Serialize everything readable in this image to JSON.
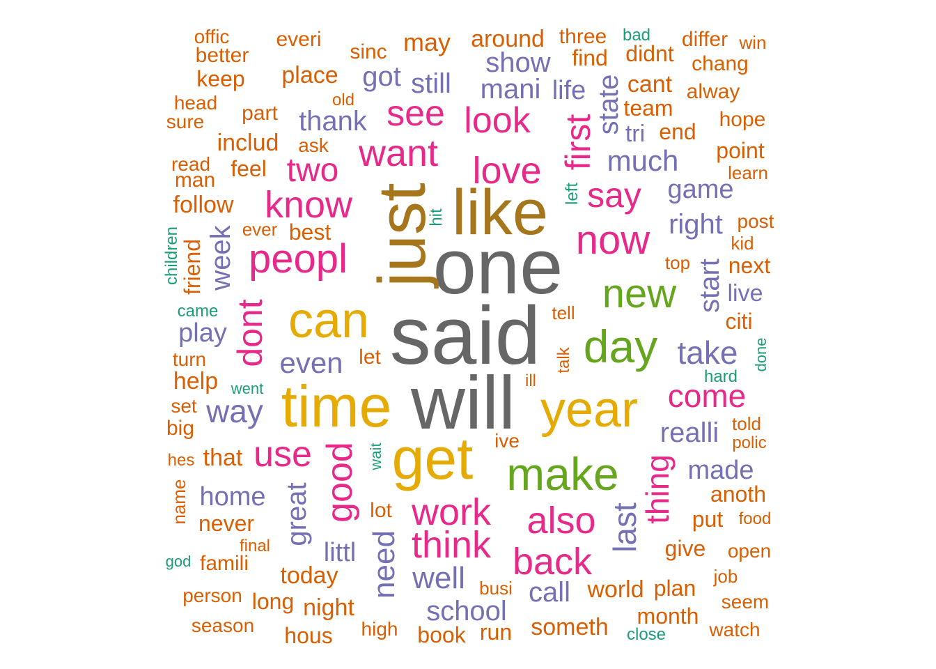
{
  "palette": {
    "gray": "#666666",
    "gold": "#a6761d",
    "yellow": "#e6ab02",
    "green": "#66a61e",
    "magenta": "#e7298a",
    "purple": "#7570b3",
    "orange": "#d95f02",
    "teal": "#1b9e77"
  },
  "words": [
    {
      "text": "said",
      "color": "gray"
    },
    {
      "text": "one",
      "color": "gray"
    },
    {
      "text": "will",
      "color": "gray"
    },
    {
      "text": "just",
      "color": "gold"
    },
    {
      "text": "like",
      "color": "gold"
    },
    {
      "text": "time",
      "color": "yellow"
    },
    {
      "text": "get",
      "color": "yellow"
    },
    {
      "text": "can",
      "color": "yellow"
    },
    {
      "text": "year",
      "color": "yellow"
    },
    {
      "text": "make",
      "color": "green"
    },
    {
      "text": "day",
      "color": "green"
    },
    {
      "text": "new",
      "color": "green"
    },
    {
      "text": "peopl",
      "color": "magenta"
    },
    {
      "text": "now",
      "color": "magenta"
    },
    {
      "text": "know",
      "color": "magenta"
    },
    {
      "text": "want",
      "color": "magenta"
    },
    {
      "text": "love",
      "color": "magenta"
    },
    {
      "text": "see",
      "color": "magenta"
    },
    {
      "text": "look",
      "color": "magenta"
    },
    {
      "text": "two",
      "color": "magenta"
    },
    {
      "text": "say",
      "color": "magenta"
    },
    {
      "text": "first",
      "color": "magenta"
    },
    {
      "text": "dont",
      "color": "magenta"
    },
    {
      "text": "good",
      "color": "magenta"
    },
    {
      "text": "work",
      "color": "magenta"
    },
    {
      "text": "think",
      "color": "magenta"
    },
    {
      "text": "also",
      "color": "magenta"
    },
    {
      "text": "back",
      "color": "magenta"
    },
    {
      "text": "come",
      "color": "magenta"
    },
    {
      "text": "thing",
      "color": "magenta"
    },
    {
      "text": "use",
      "color": "magenta"
    },
    {
      "text": "take",
      "color": "purple"
    },
    {
      "text": "even",
      "color": "purple"
    },
    {
      "text": "way",
      "color": "purple"
    },
    {
      "text": "realli",
      "color": "purple"
    },
    {
      "text": "last",
      "color": "purple"
    },
    {
      "text": "need",
      "color": "purple"
    },
    {
      "text": "well",
      "color": "purple"
    },
    {
      "text": "school",
      "color": "purple"
    },
    {
      "text": "great",
      "color": "purple"
    },
    {
      "text": "home",
      "color": "purple"
    },
    {
      "text": "much",
      "color": "purple"
    },
    {
      "text": "state",
      "color": "purple"
    },
    {
      "text": "mani",
      "color": "purple"
    },
    {
      "text": "show",
      "color": "purple"
    },
    {
      "text": "thank",
      "color": "purple"
    },
    {
      "text": "got",
      "color": "purple"
    },
    {
      "text": "still",
      "color": "purple"
    },
    {
      "text": "right",
      "color": "purple"
    },
    {
      "text": "game",
      "color": "purple"
    },
    {
      "text": "start",
      "color": "purple"
    },
    {
      "text": "week",
      "color": "purple"
    },
    {
      "text": "play",
      "color": "purple"
    },
    {
      "text": "made",
      "color": "purple"
    },
    {
      "text": "littl",
      "color": "purple"
    },
    {
      "text": "call",
      "color": "purple"
    },
    {
      "text": "life",
      "color": "purple"
    },
    {
      "text": "tri",
      "color": "purple"
    },
    {
      "text": "offic",
      "color": "orange"
    },
    {
      "text": "everi",
      "color": "orange"
    },
    {
      "text": "sinc",
      "color": "orange"
    },
    {
      "text": "may",
      "color": "orange"
    },
    {
      "text": "around",
      "color": "orange"
    },
    {
      "text": "three",
      "color": "orange"
    },
    {
      "text": "bad",
      "color": "teal"
    },
    {
      "text": "differ",
      "color": "orange"
    },
    {
      "text": "win",
      "color": "orange"
    },
    {
      "text": "better",
      "color": "orange"
    },
    {
      "text": "find",
      "color": "orange"
    },
    {
      "text": "didnt",
      "color": "orange"
    },
    {
      "text": "chang",
      "color": "orange"
    },
    {
      "text": "keep",
      "color": "orange"
    },
    {
      "text": "place",
      "color": "orange"
    },
    {
      "text": "old",
      "color": "orange"
    },
    {
      "text": "cant",
      "color": "orange"
    },
    {
      "text": "alway",
      "color": "orange"
    },
    {
      "text": "head",
      "color": "orange"
    },
    {
      "text": "team",
      "color": "orange"
    },
    {
      "text": "part",
      "color": "orange"
    },
    {
      "text": "sure",
      "color": "orange"
    },
    {
      "text": "end",
      "color": "orange"
    },
    {
      "text": "hope",
      "color": "orange"
    },
    {
      "text": "includ",
      "color": "orange"
    },
    {
      "text": "ask",
      "color": "orange"
    },
    {
      "text": "point",
      "color": "orange"
    },
    {
      "text": "read",
      "color": "orange"
    },
    {
      "text": "feel",
      "color": "orange"
    },
    {
      "text": "learn",
      "color": "orange"
    },
    {
      "text": "man",
      "color": "orange"
    },
    {
      "text": "left",
      "color": "teal"
    },
    {
      "text": "follow",
      "color": "orange"
    },
    {
      "text": "hit",
      "color": "teal"
    },
    {
      "text": "post",
      "color": "orange"
    },
    {
      "text": "ever",
      "color": "orange"
    },
    {
      "text": "best",
      "color": "orange"
    },
    {
      "text": "children",
      "color": "teal"
    },
    {
      "text": "kid",
      "color": "orange"
    },
    {
      "text": "friend",
      "color": "orange"
    },
    {
      "text": "top",
      "color": "orange"
    },
    {
      "text": "next",
      "color": "orange"
    },
    {
      "text": "live",
      "color": "purple"
    },
    {
      "text": "came",
      "color": "teal"
    },
    {
      "text": "tell",
      "color": "orange"
    },
    {
      "text": "citi",
      "color": "orange"
    },
    {
      "text": "done",
      "color": "teal"
    },
    {
      "text": "turn",
      "color": "orange"
    },
    {
      "text": "let",
      "color": "orange"
    },
    {
      "text": "talk",
      "color": "orange"
    },
    {
      "text": "help",
      "color": "orange"
    },
    {
      "text": "went",
      "color": "teal"
    },
    {
      "text": "ill",
      "color": "orange"
    },
    {
      "text": "hard",
      "color": "teal"
    },
    {
      "text": "set",
      "color": "orange"
    },
    {
      "text": "big",
      "color": "orange"
    },
    {
      "text": "told",
      "color": "orange"
    },
    {
      "text": "polic",
      "color": "orange"
    },
    {
      "text": "ive",
      "color": "orange"
    },
    {
      "text": "wait",
      "color": "teal"
    },
    {
      "text": "hes",
      "color": "orange"
    },
    {
      "text": "that",
      "color": "orange"
    },
    {
      "text": "name",
      "color": "orange"
    },
    {
      "text": "anoth",
      "color": "orange"
    },
    {
      "text": "lot",
      "color": "orange"
    },
    {
      "text": "put",
      "color": "orange"
    },
    {
      "text": "never",
      "color": "orange"
    },
    {
      "text": "food",
      "color": "orange"
    },
    {
      "text": "final",
      "color": "orange"
    },
    {
      "text": "give",
      "color": "orange"
    },
    {
      "text": "open",
      "color": "orange"
    },
    {
      "text": "god",
      "color": "teal"
    },
    {
      "text": "famili",
      "color": "orange"
    },
    {
      "text": "today",
      "color": "orange"
    },
    {
      "text": "job",
      "color": "orange"
    },
    {
      "text": "world",
      "color": "orange"
    },
    {
      "text": "plan",
      "color": "orange"
    },
    {
      "text": "busi",
      "color": "orange"
    },
    {
      "text": "person",
      "color": "orange"
    },
    {
      "text": "long",
      "color": "orange"
    },
    {
      "text": "night",
      "color": "orange"
    },
    {
      "text": "seem",
      "color": "orange"
    },
    {
      "text": "month",
      "color": "orange"
    },
    {
      "text": "season",
      "color": "orange"
    },
    {
      "text": "high",
      "color": "orange"
    },
    {
      "text": "someth",
      "color": "orange"
    },
    {
      "text": "watch",
      "color": "orange"
    },
    {
      "text": "hous",
      "color": "orange"
    },
    {
      "text": "book",
      "color": "orange"
    },
    {
      "text": "run",
      "color": "orange"
    },
    {
      "text": "close",
      "color": "teal"
    }
  ]
}
